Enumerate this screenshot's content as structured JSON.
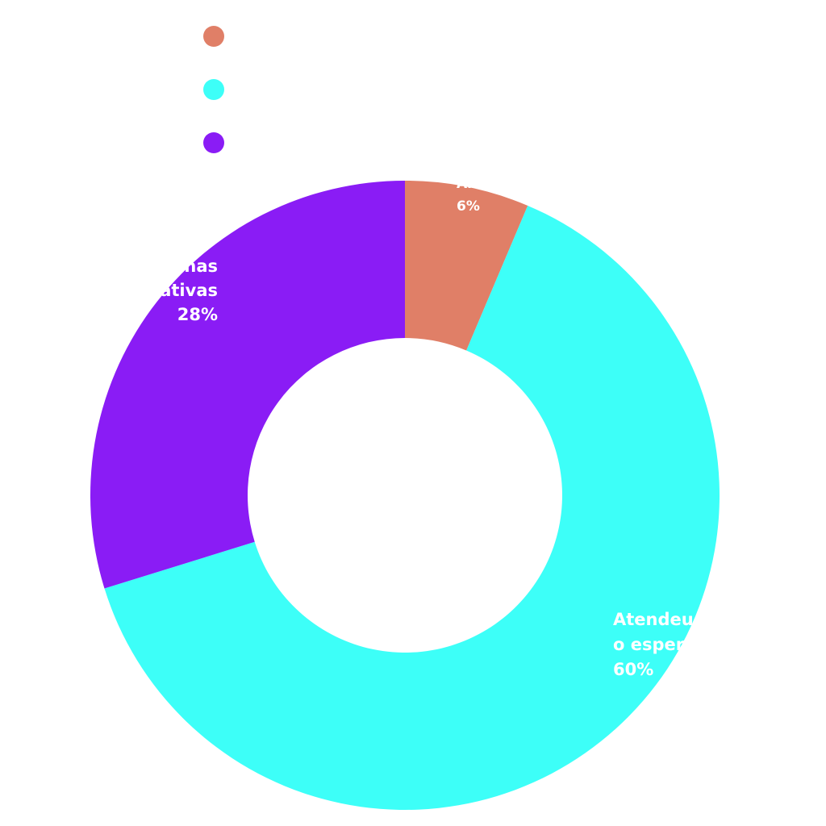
{
  "chart_data": {
    "type": "pie",
    "variant": "donut",
    "start_angle_deg": 0,
    "direction": "clockwise",
    "legend_position": "top",
    "categories": [
      "Abaixo das minhas expectativas",
      "Atendeu conforme o esperado",
      "Para além das minhas expectativas"
    ],
    "values": [
      6,
      60,
      28
    ],
    "colors": [
      "#E07F67",
      "#3DFFF8",
      "#8A1CF5"
    ],
    "data_labels": [
      {
        "lines": [
          "Abaixo das minhas expectativas",
          "6%"
        ]
      },
      {
        "lines": [
          "Atendeu conforme",
          "o esperado",
          "60%"
        ]
      },
      {
        "lines": [
          "Para além das minhas",
          "expectativas",
          "28%"
        ]
      }
    ]
  }
}
